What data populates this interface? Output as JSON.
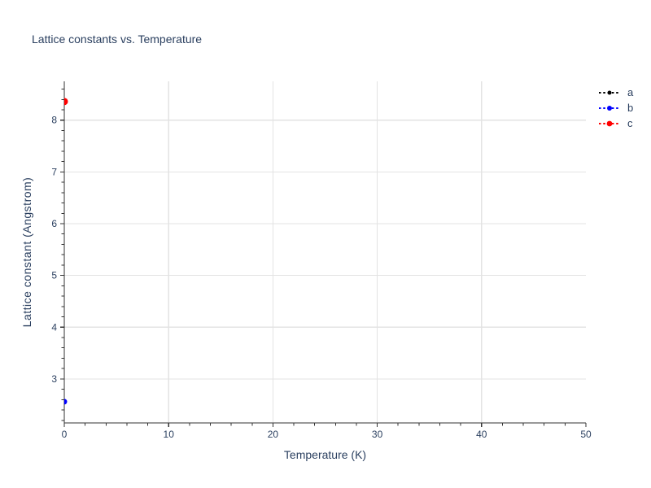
{
  "page": {
    "background": "#ffffff"
  },
  "chart_data": {
    "type": "scatter",
    "title": "Lattice constants vs. Temperature",
    "xlabel": "Temperature (K)",
    "ylabel": "Lattice constant (Angstrom)",
    "xlim": [
      0,
      50
    ],
    "ylim": [
      2.15,
      8.75
    ],
    "x_ticks": [
      0,
      10,
      20,
      30,
      40,
      50
    ],
    "x_minor_step": 2,
    "y_ticks": [
      3,
      4,
      5,
      6,
      7,
      8
    ],
    "y_minor_step": 0.2,
    "grid": "on",
    "x_grid_values": [
      10,
      20,
      30,
      40
    ],
    "y_grid_values": [
      3,
      4,
      5,
      6,
      7,
      8
    ],
    "legend_position": "top-right",
    "series": [
      {
        "name": "a",
        "color": "#000000",
        "marker_size": 5,
        "line_style": "dotted",
        "x": [
          0
        ],
        "y": [
          2.56
        ]
      },
      {
        "name": "b",
        "color": "#0000ff",
        "marker_size": 7,
        "line_style": "dotted",
        "x": [
          0
        ],
        "y": [
          2.56
        ]
      },
      {
        "name": "c",
        "color": "#ff0000",
        "marker_size": 9,
        "line_style": "dotted",
        "x": [
          0
        ],
        "y": [
          8.36
        ]
      }
    ],
    "colors": {
      "text": "#2a3f5f",
      "grid": "#e3e3e3",
      "axis": "#333333",
      "background": "#ffffff"
    }
  }
}
